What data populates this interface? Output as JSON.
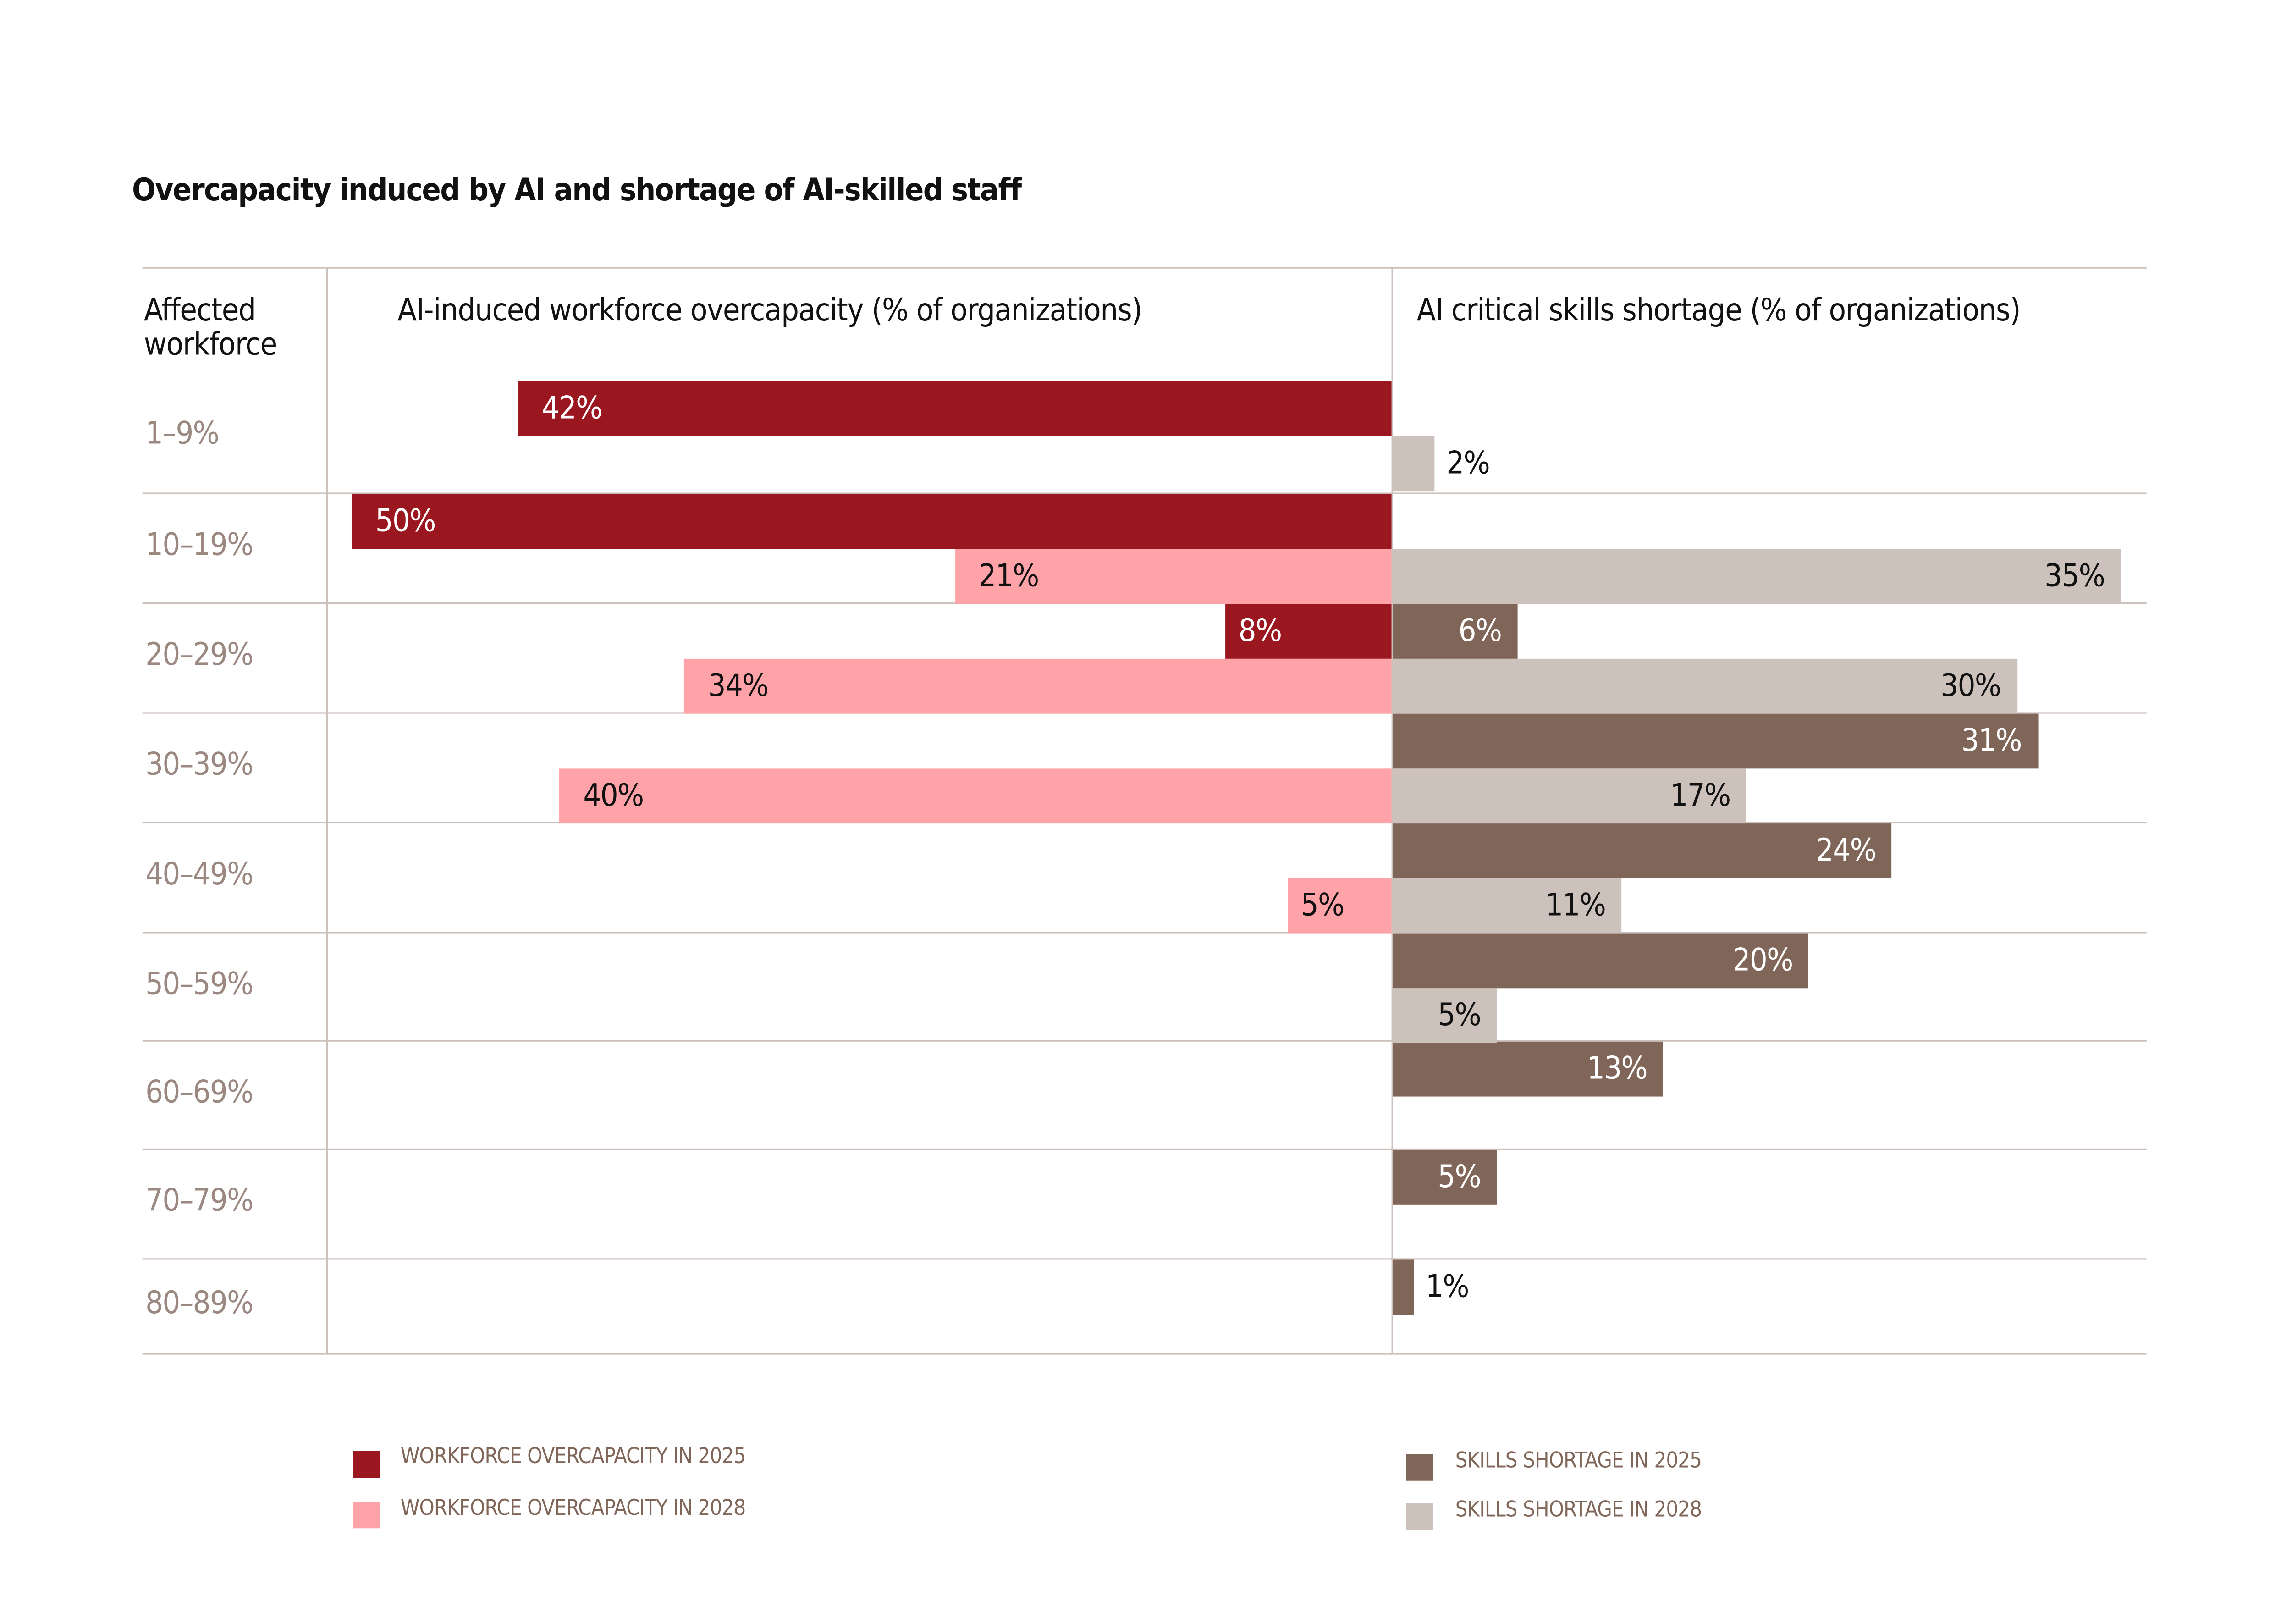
{
  "chart_data": {
    "type": "bar",
    "orientation": "horizontal-diverging",
    "title": "Overcapacity induced by AI and shortage of AI-skilled staff",
    "row_header": "Affected workforce",
    "left_header": "AI-induced workforce overcapacity (% of organizations)",
    "right_header": "AI critical skills shortage (% of organizations)",
    "categories": [
      "1–9%",
      "10–19%",
      "20–29%",
      "30–39%",
      "40–49%",
      "50–59%",
      "60–69%",
      "70–79%",
      "80–89%"
    ],
    "series": [
      {
        "name": "WORKFORCE OVERCAPACITY IN 2025",
        "side": "left",
        "slot": 0,
        "color": "#9a1720",
        "label_color": "#ffffff",
        "values": [
          42,
          50,
          8,
          null,
          null,
          null,
          null,
          null,
          null
        ]
      },
      {
        "name": "WORKFORCE OVERCAPACITY IN 2028",
        "side": "left",
        "slot": 1,
        "color": "#ffa3a8",
        "label_color": "#111111",
        "values": [
          null,
          21,
          34,
          40,
          5,
          null,
          null,
          null,
          null
        ]
      },
      {
        "name": "SKILLS SHORTAGE IN 2025",
        "side": "right",
        "slot": 0,
        "color": "#806658",
        "label_color": "#ffffff",
        "values": [
          null,
          null,
          6,
          31,
          24,
          20,
          13,
          5,
          1
        ]
      },
      {
        "name": "SKILLS SHORTAGE IN 2028",
        "side": "right",
        "slot": 1,
        "color": "#cdc1bc",
        "label_color": "#111111",
        "values": [
          2,
          35,
          30,
          17,
          11,
          5,
          null,
          null,
          null
        ]
      }
    ],
    "value_suffix": "%",
    "xlim": [
      0,
      50
    ],
    "grid": false,
    "legend_position": "bottom"
  }
}
